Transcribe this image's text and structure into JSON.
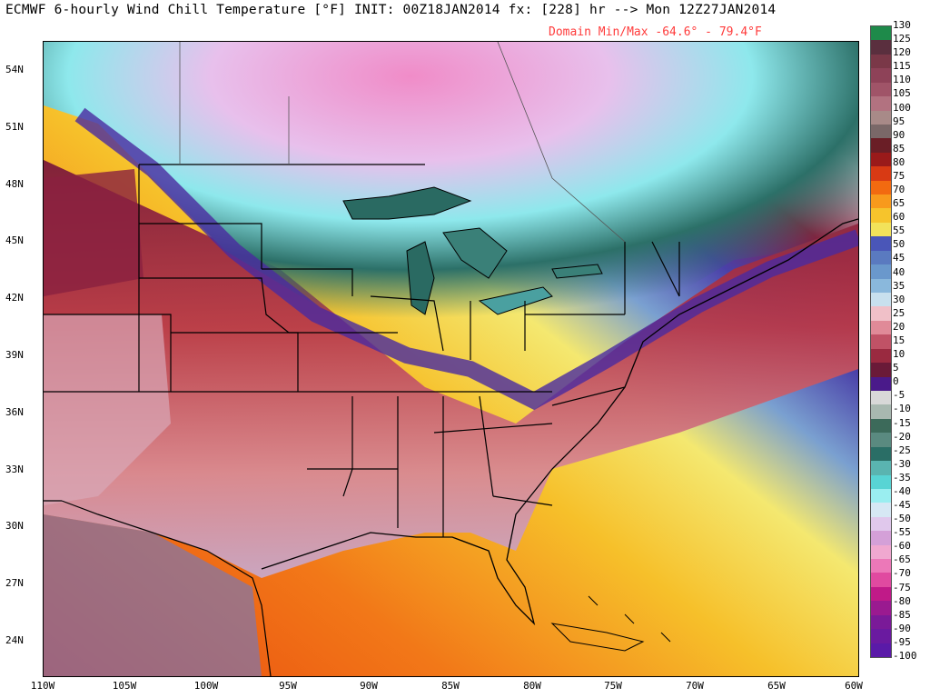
{
  "title": "ECMWF 6-hourly Wind Chill Temperature [°F] INIT: 00Z18JAN2014 fx: [228] hr --> Mon 12Z27JAN2014",
  "subtitle": "Domain Min/Max -64.6° -  79.4°F",
  "lat_labels": [
    "54N",
    "51N",
    "48N",
    "45N",
    "42N",
    "39N",
    "36N",
    "33N",
    "30N",
    "27N",
    "24N"
  ],
  "lon_labels": [
    "110W",
    "105W",
    "100W",
    "95W",
    "90W",
    "85W",
    "80W",
    "75W",
    "70W",
    "65W",
    "60W"
  ],
  "colorbar": {
    "labels": [
      "130",
      "125",
      "120",
      "115",
      "110",
      "105",
      "100",
      "95",
      "90",
      "85",
      "80",
      "75",
      "70",
      "65",
      "60",
      "55",
      "50",
      "45",
      "40",
      "35",
      "30",
      "25",
      "20",
      "15",
      "10",
      "5",
      "0",
      "-5",
      "-10",
      "-15",
      "-20",
      "-25",
      "-30",
      "-35",
      "-40",
      "-45",
      "-50",
      "-55",
      "-60",
      "-65",
      "-70",
      "-75",
      "-80",
      "-85",
      "-90",
      "-95",
      "-100"
    ],
    "colors": [
      "#1e8a4a",
      "#5a2f3e",
      "#7a3848",
      "#8e4258",
      "#a05468",
      "#b27280",
      "#a88a88",
      "#7a6868",
      "#6a1e26",
      "#9a1a1a",
      "#d83a14",
      "#f26a10",
      "#f89a1c",
      "#f6c42c",
      "#f2e25a",
      "#4a56b8",
      "#5a7ac0",
      "#6a98cc",
      "#8ab8dc",
      "#c8e0ee",
      "#f0c0c8",
      "#e08a98",
      "#c05266",
      "#9a2a40",
      "#6a1a38",
      "#4a1a8a",
      "#d8d8d8",
      "#a8b8b0",
      "#3c6a5a",
      "#5a8a80",
      "#2a6e66",
      "#5ab4b0",
      "#58d4d4",
      "#9aeef0",
      "#d6e8f4",
      "#e0c8ec",
      "#d4a0d8",
      "#f0a8d0",
      "#ec78b8",
      "#e04aa0",
      "#c01a88",
      "#9a1a90",
      "#7a1a98",
      "#6a1aa0",
      "#5a1aa8"
    ]
  },
  "states_labels": []
}
